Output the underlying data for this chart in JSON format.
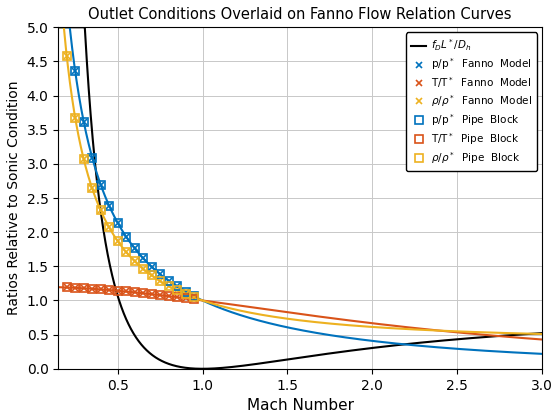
{
  "title": "Outlet Conditions Overlaid on Fanno Flow Relation Curves",
  "xlabel": "Mach Number",
  "ylabel": "Ratios Relative to Sonic Condition",
  "xlim": [
    0.15,
    3.0
  ],
  "ylim": [
    0.0,
    5.0
  ],
  "gamma": 1.4,
  "background_color": "#ffffff",
  "grid_color": "#c8c8c8",
  "fanno_line_color": "#000000",
  "p_color": "#0072BD",
  "T_color": "#D95319",
  "rho_color": "#EDB120",
  "figsize": [
    5.6,
    4.2
  ],
  "dpi": 100
}
